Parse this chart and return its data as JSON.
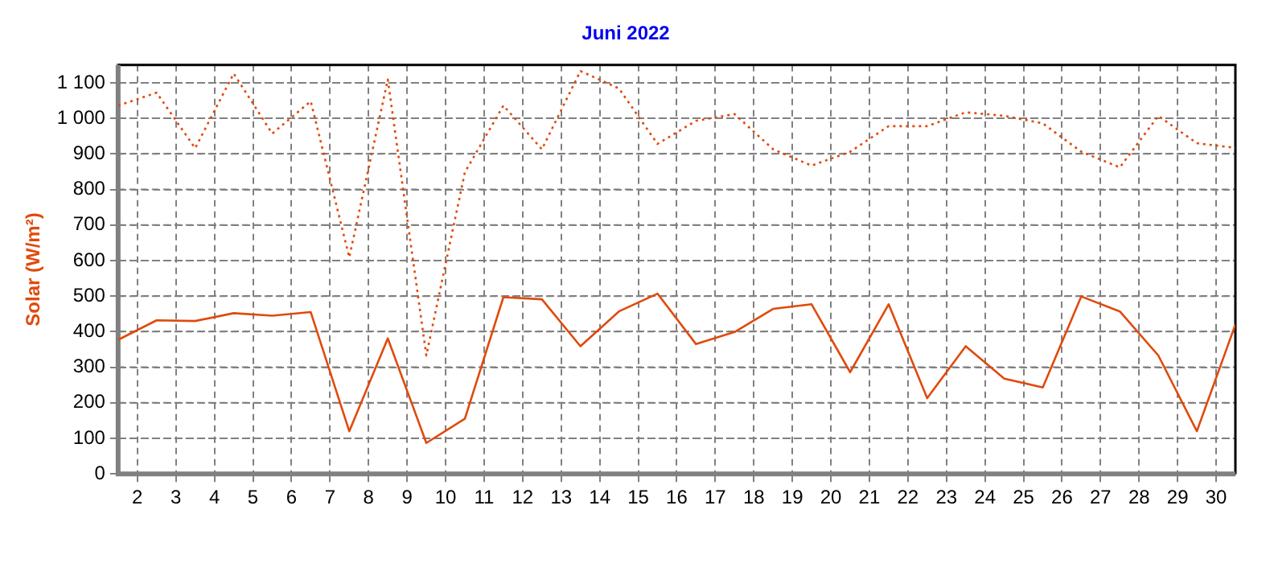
{
  "chart_data": {
    "type": "line",
    "title": "Juni 2022",
    "ylabel": "Solar (W/m²)",
    "x": [
      1.5,
      2.5,
      3.5,
      4.5,
      5.5,
      6.5,
      7.5,
      8.5,
      9.5,
      10.5,
      11.5,
      12.5,
      13.5,
      14.5,
      15.5,
      16.5,
      17.5,
      18.5,
      19.5,
      20.5,
      21.5,
      22.5,
      23.5,
      24.5,
      25.5,
      26.5,
      27.5,
      28.5,
      29.5,
      30.5
    ],
    "series": [
      {
        "color": "#e04a0c",
        "line_style": "dotted",
        "values": [
          1036,
          1072,
          916,
          1126,
          957,
          1048,
          609,
          1109,
          333,
          848,
          1036,
          913,
          1133,
          1084,
          928,
          993,
          1012,
          913,
          867,
          906,
          978,
          978,
          1017,
          1007,
          986,
          906,
          862,
          1007,
          930,
          917
        ]
      },
      {
        "color": "#e04a0c",
        "line_style": "solid",
        "values": [
          377,
          432,
          430,
          452,
          445,
          455,
          120,
          381,
          87,
          155,
          497,
          491,
          359,
          457,
          507,
          365,
          399,
          464,
          477,
          286,
          477,
          213,
          359,
          268,
          243,
          499,
          457,
          333,
          120,
          420
        ]
      }
    ],
    "xlim": [
      1.5,
      30.5
    ],
    "xticks": [
      2,
      3,
      4,
      5,
      6,
      7,
      8,
      9,
      10,
      11,
      12,
      13,
      14,
      15,
      16,
      17,
      18,
      19,
      20,
      21,
      22,
      23,
      24,
      25,
      26,
      27,
      28,
      29,
      30
    ],
    "ylim": [
      0,
      1150
    ],
    "yticks": [
      0,
      100,
      200,
      300,
      400,
      500,
      600,
      700,
      800,
      900,
      {
        "value": 1000,
        "label": "1 000"
      },
      {
        "value": 1100,
        "label": "1 100"
      }
    ],
    "grid": true,
    "legend": false,
    "marker": "none"
  }
}
